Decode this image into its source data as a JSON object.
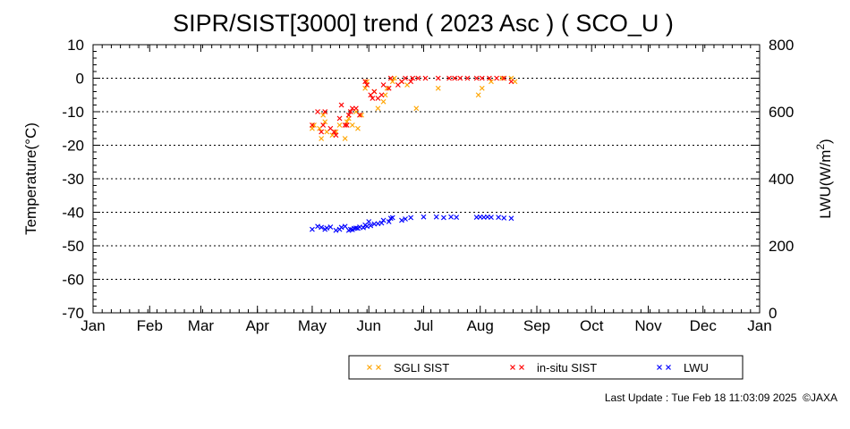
{
  "chart_data": {
    "type": "scatter",
    "title": "SIPR/SIST[3000] trend ( 2023 Asc ) ( SCO_U )",
    "ylabel": "Temperature(°C)",
    "y2label_base": "LWU(W/m",
    "y2label_sup": "2",
    "y2label_end": ")",
    "ylim": [
      -70,
      10
    ],
    "yticks": [
      "10",
      "0",
      "-10",
      "-20",
      "-30",
      "-40",
      "-50",
      "-60",
      "-70"
    ],
    "y2lim": [
      0,
      800
    ],
    "y2ticks": [
      "800",
      "600",
      "400",
      "200",
      "0"
    ],
    "months": [
      "Jan",
      "Feb",
      "Mar",
      "Apr",
      "May",
      "Jun",
      "Jul",
      "Aug",
      "Sep",
      "Oct",
      "Nov",
      "Dec",
      "Jan"
    ],
    "x_unit": "day of year 2023",
    "grid": "horizontal dotted",
    "legend_position": "bottom-right",
    "series": [
      {
        "name": "SGLI SIST",
        "color": "#ffa500",
        "axis": "left",
        "points": [
          [
            121,
            -15
          ],
          [
            122,
            -14
          ],
          [
            125,
            -15
          ],
          [
            126,
            -18
          ],
          [
            127,
            -11
          ],
          [
            128,
            -13
          ],
          [
            129,
            -16
          ],
          [
            132,
            -17
          ],
          [
            134,
            -16
          ],
          [
            136,
            -14
          ],
          [
            139,
            -18
          ],
          [
            140,
            -13
          ],
          [
            141,
            -12
          ],
          [
            143,
            -14
          ],
          [
            145,
            -10
          ],
          [
            146,
            -15
          ],
          [
            148,
            -11
          ],
          [
            150,
            -3
          ],
          [
            151,
            -1
          ],
          [
            155,
            -4
          ],
          [
            157,
            -9
          ],
          [
            160,
            -7
          ],
          [
            161,
            -5
          ],
          [
            162,
            -3
          ],
          [
            165,
            -1
          ],
          [
            166,
            0
          ],
          [
            170,
            -1
          ],
          [
            173,
            -2
          ],
          [
            178,
            -9
          ],
          [
            190,
            -3
          ],
          [
            212,
            -5
          ],
          [
            214,
            -3
          ],
          [
            219,
            -1
          ],
          [
            225,
            0
          ],
          [
            230,
            0
          ],
          [
            232,
            -1
          ]
        ]
      },
      {
        "name": "in-situ SIST",
        "color": "#ff0000",
        "axis": "left",
        "points": [
          [
            121,
            -14
          ],
          [
            124,
            -10
          ],
          [
            126,
            -16
          ],
          [
            127,
            -14
          ],
          [
            128,
            -10
          ],
          [
            131,
            -15
          ],
          [
            133,
            -16
          ],
          [
            134,
            -17
          ],
          [
            136,
            -12
          ],
          [
            137,
            -8
          ],
          [
            139,
            -14
          ],
          [
            140,
            -14
          ],
          [
            141,
            -11
          ],
          [
            142,
            -10
          ],
          [
            143,
            -9
          ],
          [
            145,
            -9
          ],
          [
            147,
            -11
          ],
          [
            150,
            -1
          ],
          [
            151,
            -2
          ],
          [
            153,
            -5
          ],
          [
            154,
            -6
          ],
          [
            155,
            -4
          ],
          [
            157,
            -6
          ],
          [
            159,
            -5
          ],
          [
            160,
            -2
          ],
          [
            163,
            -3
          ],
          [
            164,
            0
          ],
          [
            168,
            -2
          ],
          [
            170,
            -1
          ],
          [
            172,
            0
          ],
          [
            175,
            -1
          ],
          [
            176,
            0
          ],
          [
            179,
            0
          ],
          [
            183,
            0
          ],
          [
            190,
            0
          ],
          [
            196,
            0
          ],
          [
            199,
            0
          ],
          [
            202,
            0
          ],
          [
            206,
            0
          ],
          [
            211,
            0
          ],
          [
            214,
            0
          ],
          [
            218,
            0
          ],
          [
            222,
            0
          ],
          [
            226,
            0
          ],
          [
            230,
            -1
          ]
        ]
      },
      {
        "name": "LWU",
        "color": "#0000ff",
        "axis": "right",
        "points": [
          [
            121,
            249
          ],
          [
            124,
            258
          ],
          [
            126,
            255
          ],
          [
            128,
            249
          ],
          [
            129,
            253
          ],
          [
            131,
            256
          ],
          [
            134,
            246
          ],
          [
            136,
            249
          ],
          [
            137,
            255
          ],
          [
            139,
            258
          ],
          [
            141,
            246
          ],
          [
            142,
            249
          ],
          [
            143,
            248
          ],
          [
            144,
            252
          ],
          [
            145,
            253
          ],
          [
            146,
            252
          ],
          [
            147,
            256
          ],
          [
            149,
            254
          ],
          [
            150,
            262
          ],
          [
            151,
            258
          ],
          [
            152,
            272
          ],
          [
            153,
            260
          ],
          [
            155,
            265
          ],
          [
            157,
            266
          ],
          [
            159,
            268
          ],
          [
            160,
            276
          ],
          [
            163,
            272
          ],
          [
            164,
            282
          ],
          [
            165,
            284
          ],
          [
            170,
            276
          ],
          [
            172,
            280
          ],
          [
            175,
            284
          ],
          [
            182,
            286
          ],
          [
            189,
            286
          ],
          [
            193,
            284
          ],
          [
            197,
            286
          ],
          [
            200,
            285
          ],
          [
            211,
            285
          ],
          [
            213,
            286
          ],
          [
            215,
            285
          ],
          [
            217,
            286
          ],
          [
            219,
            285
          ],
          [
            223,
            285
          ],
          [
            226,
            283
          ],
          [
            230,
            282
          ]
        ]
      }
    ]
  },
  "footer": {
    "last_update": "Last Update : Tue Feb 18 11:03:09 2025",
    "copyright": "©JAXA"
  }
}
